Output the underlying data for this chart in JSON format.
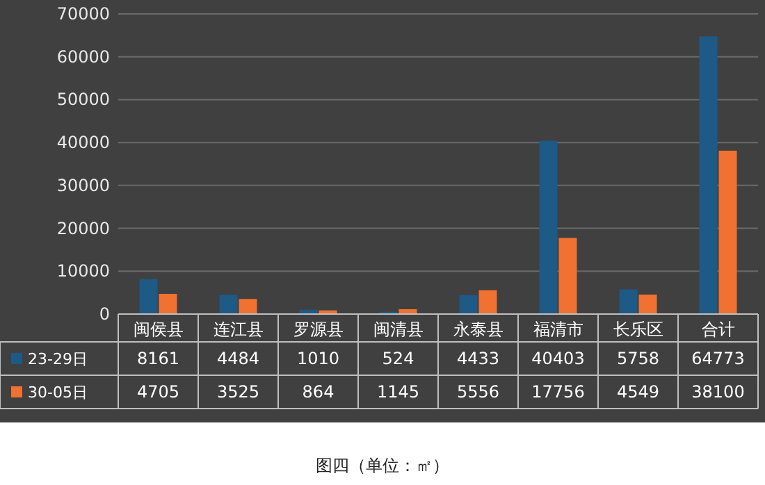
{
  "chart_data": {
    "type": "bar",
    "categories": [
      "闽侯县",
      "连江县",
      "罗源县",
      "闽清县",
      "永泰县",
      "福清市",
      "长乐区",
      "合计"
    ],
    "series": [
      {
        "name": "23-29日",
        "color": "#1d5a86",
        "values": [
          8161,
          4484,
          1010,
          524,
          4433,
          40403,
          5758,
          64773
        ]
      },
      {
        "name": "30-05日",
        "color": "#f07132",
        "values": [
          4705,
          3525,
          864,
          1145,
          5556,
          17756,
          4549,
          38100
        ]
      }
    ],
    "ylim": [
      0,
      70000
    ],
    "yticks": [
      0,
      10000,
      20000,
      30000,
      40000,
      50000,
      60000,
      70000
    ],
    "grid": "y",
    "data_labels": true,
    "legend": "bottom",
    "annotations": [
      "图四（单位：㎡）"
    ]
  }
}
